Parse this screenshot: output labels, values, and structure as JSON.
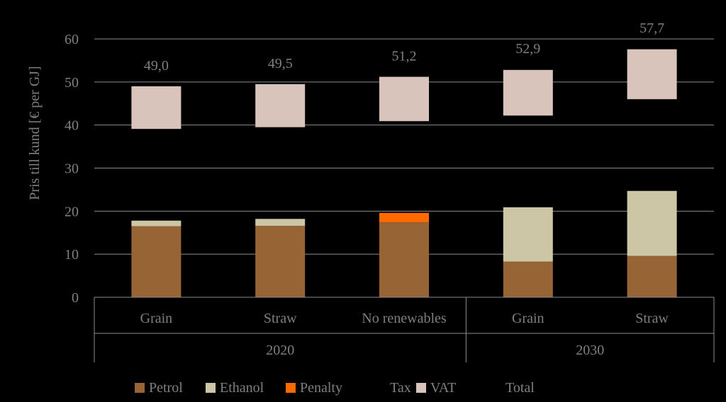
{
  "chart_data": {
    "type": "bar",
    "stacked": true,
    "ylabel": "Pris till kund [€ per GJ]",
    "ylim": [
      0,
      60
    ],
    "yticks": [
      0,
      10,
      20,
      30,
      40,
      50,
      60
    ],
    "grid": true,
    "legend_position": "bottom",
    "groups": [
      {
        "label": "2020",
        "categories": [
          "Grain",
          "Straw",
          "No renewables"
        ]
      },
      {
        "label": "2030",
        "categories": [
          "Grain",
          "Straw"
        ]
      }
    ],
    "categories": [
      "Grain",
      "Straw",
      "No renewables",
      "Grain",
      "Straw"
    ],
    "series": [
      {
        "name": "Petrol",
        "color": "#976436",
        "values": [
          16.5,
          16.6,
          17.4,
          8.3,
          9.6
        ],
        "visible": true
      },
      {
        "name": "Ethanol",
        "color": "#ccc5a6",
        "values": [
          1.3,
          1.6,
          0,
          12.6,
          15.1
        ],
        "visible": true
      },
      {
        "name": "Penalty",
        "color": "#ff6a00",
        "values": [
          0,
          0,
          2.2,
          0,
          0
        ],
        "visible": true
      },
      {
        "name": "Tax",
        "color": "#000000",
        "values": [
          21.3,
          21.3,
          21.3,
          21.3,
          21.3
        ],
        "visible": false
      },
      {
        "name": "VAT",
        "color": "#d8c4ba",
        "values": [
          9.9,
          10.0,
          10.3,
          10.6,
          11.6
        ],
        "visible": true
      },
      {
        "name": "Total",
        "color": "#000000",
        "values": [
          49.0,
          49.5,
          51.2,
          52.9,
          57.7
        ],
        "visible": false
      }
    ],
    "total_labels": [
      "49,0",
      "49,5",
      "51,2",
      "52,9",
      "57,7"
    ],
    "colors": {
      "axis_text": "#7f7f7f",
      "grid": "#8c8c8c",
      "axis_line": "#8c8c8c",
      "background": "#000000"
    }
  }
}
